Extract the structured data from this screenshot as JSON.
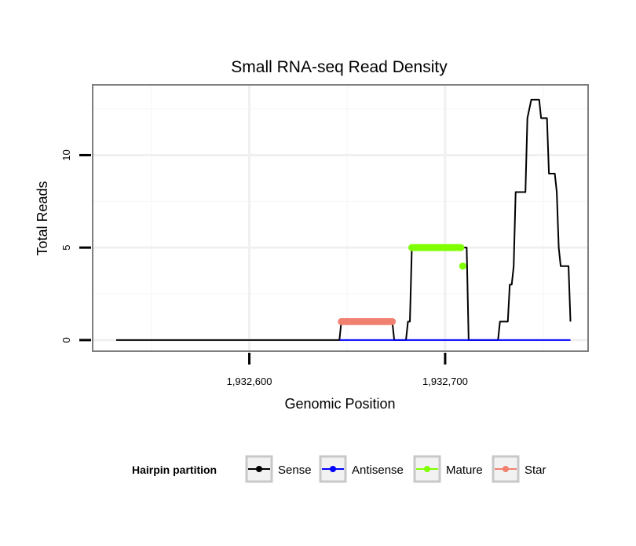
{
  "chart_data": {
    "type": "line",
    "title": "Small RNA-seq Read Density",
    "xlabel": "Genomic Position",
    "ylabel": "Total Reads",
    "xlim": [
      1932520,
      1932773
    ],
    "ylim": [
      -0.6,
      13.8
    ],
    "x_ticks": [
      {
        "value": 1932600,
        "label": "1,932,600"
      },
      {
        "value": 1932700,
        "label": "1,932,700"
      }
    ],
    "y_ticks": [
      {
        "value": 0,
        "label": "0"
      },
      {
        "value": 5,
        "label": "5"
      },
      {
        "value": 10,
        "label": "10"
      }
    ],
    "x_minor_grid": [
      1932550,
      1932650,
      1932750
    ],
    "y_minor_grid": [
      2.5,
      7.5,
      12.5
    ],
    "grid": true,
    "legend": {
      "title": "Hairpin partition",
      "placement": "bottom",
      "entries": [
        "Sense",
        "Antisense",
        "Mature",
        "Star"
      ]
    },
    "series": [
      {
        "name": "Sense",
        "color": "#000000",
        "style": "line",
        "points": [
          [
            1932532,
            0
          ],
          [
            1932646,
            0
          ],
          [
            1932647,
            1
          ],
          [
            1932673,
            1
          ],
          [
            1932674,
            0
          ],
          [
            1932680,
            0
          ],
          [
            1932681,
            1
          ],
          [
            1932682,
            1
          ],
          [
            1932683,
            5
          ],
          [
            1932711,
            5
          ],
          [
            1932712,
            0
          ],
          [
            1932727,
            0
          ],
          [
            1932728,
            1
          ],
          [
            1932732,
            1
          ],
          [
            1932733,
            3
          ],
          [
            1932734,
            3
          ],
          [
            1932735,
            4
          ],
          [
            1932736,
            8
          ],
          [
            1932741,
            8
          ],
          [
            1932742,
            12
          ],
          [
            1932744,
            13
          ],
          [
            1932747,
            13
          ],
          [
            1932748,
            13
          ],
          [
            1932749,
            12
          ],
          [
            1932752,
            12
          ],
          [
            1932753,
            9
          ],
          [
            1932756,
            9
          ],
          [
            1932757,
            8
          ],
          [
            1932758,
            5
          ],
          [
            1932759,
            4
          ],
          [
            1932763,
            4
          ],
          [
            1932764,
            1
          ]
        ]
      },
      {
        "name": "Antisense",
        "color": "#0000ff",
        "style": "line",
        "points": [
          [
            1932646,
            0
          ],
          [
            1932764,
            0
          ]
        ]
      },
      {
        "name": "Mature",
        "color": "#7fff00",
        "style": "points",
        "points": [
          [
            1932683,
            5
          ],
          [
            1932684,
            5
          ],
          [
            1932685,
            5
          ],
          [
            1932686,
            5
          ],
          [
            1932687,
            5
          ],
          [
            1932688,
            5
          ],
          [
            1932689,
            5
          ],
          [
            1932690,
            5
          ],
          [
            1932691,
            5
          ],
          [
            1932692,
            5
          ],
          [
            1932693,
            5
          ],
          [
            1932694,
            5
          ],
          [
            1932695,
            5
          ],
          [
            1932696,
            5
          ],
          [
            1932697,
            5
          ],
          [
            1932698,
            5
          ],
          [
            1932699,
            5
          ],
          [
            1932700,
            5
          ],
          [
            1932701,
            5
          ],
          [
            1932702,
            5
          ],
          [
            1932703,
            5
          ],
          [
            1932704,
            5
          ],
          [
            1932705,
            5
          ],
          [
            1932706,
            5
          ],
          [
            1932707,
            5
          ],
          [
            1932708,
            5
          ],
          [
            1932709,
            4
          ]
        ]
      },
      {
        "name": "Star",
        "color": "#f08070",
        "style": "points",
        "points": [
          [
            1932647,
            1
          ],
          [
            1932648,
            1
          ],
          [
            1932649,
            1
          ],
          [
            1932650,
            1
          ],
          [
            1932651,
            1
          ],
          [
            1932652,
            1
          ],
          [
            1932653,
            1
          ],
          [
            1932654,
            1
          ],
          [
            1932655,
            1
          ],
          [
            1932656,
            1
          ],
          [
            1932657,
            1
          ],
          [
            1932658,
            1
          ],
          [
            1932659,
            1
          ],
          [
            1932660,
            1
          ],
          [
            1932661,
            1
          ],
          [
            1932662,
            1
          ],
          [
            1932663,
            1
          ],
          [
            1932664,
            1
          ],
          [
            1932665,
            1
          ],
          [
            1932666,
            1
          ],
          [
            1932667,
            1
          ],
          [
            1932668,
            1
          ],
          [
            1932669,
            1
          ],
          [
            1932670,
            1
          ],
          [
            1932671,
            1
          ],
          [
            1932672,
            1
          ],
          [
            1932673,
            1
          ]
        ]
      }
    ]
  }
}
